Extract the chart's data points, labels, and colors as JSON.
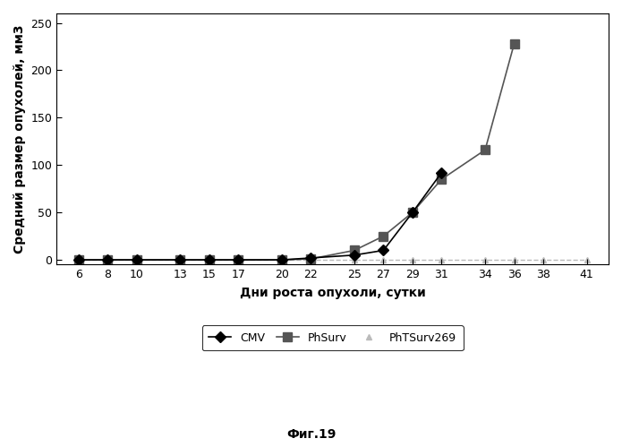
{
  "title": "",
  "xlabel": "Дни роста опухоли, сутки",
  "ylabel": "Средний размер опухолей, мм3",
  "caption": "Фиг.19",
  "xticks": [
    6,
    8,
    10,
    13,
    15,
    17,
    20,
    22,
    25,
    27,
    29,
    31,
    34,
    36,
    38,
    41
  ],
  "yticks": [
    0,
    50,
    100,
    150,
    200,
    250
  ],
  "ylim": [
    -5,
    260
  ],
  "xlim": [
    4.5,
    42.5
  ],
  "CMV": {
    "x": [
      6,
      8,
      10,
      13,
      15,
      17,
      20,
      22,
      25,
      27,
      29,
      31
    ],
    "y": [
      0,
      0,
      0,
      0,
      0,
      0,
      0,
      2,
      5,
      10,
      50,
      92
    ],
    "color": "#000000",
    "marker": "D",
    "markersize": 6,
    "label": "CMV"
  },
  "PhSurv": {
    "x": [
      6,
      8,
      10,
      13,
      15,
      17,
      20,
      22,
      25,
      27,
      29,
      31,
      34,
      36
    ],
    "y": [
      0,
      0,
      0,
      0,
      0,
      0,
      0,
      1,
      10,
      25,
      50,
      85,
      116,
      228
    ],
    "color": "#555555",
    "marker": "s",
    "markersize": 7,
    "label": "PhSurv"
  },
  "PhTSurv269": {
    "x": [
      6,
      8,
      10,
      13,
      15,
      17,
      20,
      22,
      25,
      27,
      29,
      31,
      34,
      36,
      38,
      41
    ],
    "y": [
      0,
      0,
      0,
      0,
      0,
      0,
      0,
      0,
      0,
      0,
      0,
      0,
      0,
      0,
      0,
      0
    ],
    "color": "#bbbbbb",
    "marker": "^",
    "markersize": 5,
    "label": "PhTSurv269"
  },
  "background_color": "#ffffff"
}
